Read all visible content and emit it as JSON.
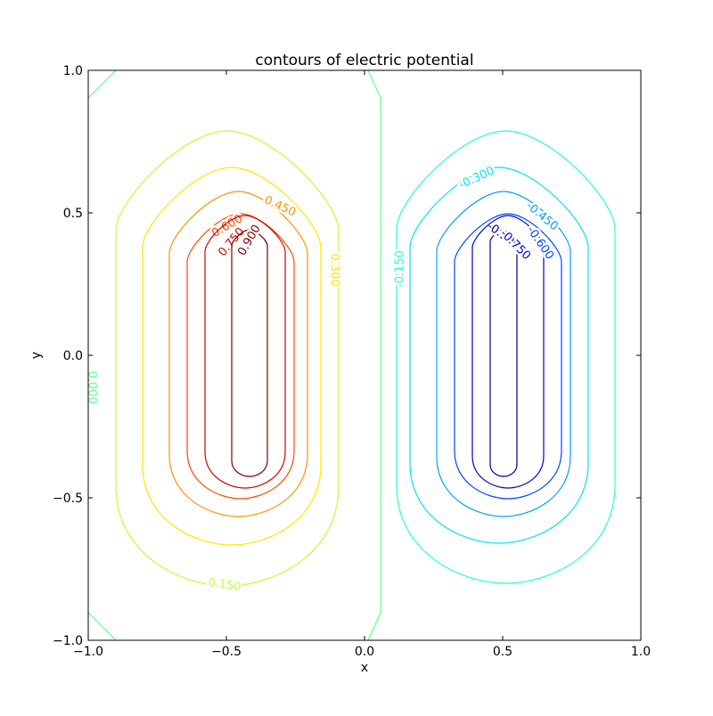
{
  "chart_data": {
    "type": "contour",
    "title": "contours of electric potential",
    "xlabel": "x",
    "ylabel": "y",
    "xlim": [
      -1,
      1
    ],
    "ylim": [
      -1,
      1
    ],
    "xticks": [
      {
        "value": -1,
        "label": "−1.0"
      },
      {
        "value": -0.5,
        "label": "−0.5"
      },
      {
        "value": 0,
        "label": "0.0"
      },
      {
        "value": 0.5,
        "label": "0.5"
      },
      {
        "value": 1,
        "label": "1.0"
      }
    ],
    "yticks": [
      {
        "value": -1,
        "label": "−1.0"
      },
      {
        "value": -0.5,
        "label": "−0.5"
      },
      {
        "value": 0,
        "label": "0.0"
      },
      {
        "value": 0.5,
        "label": "0.5"
      },
      {
        "value": 1,
        "label": "1.0"
      }
    ],
    "levels": {
      "values": [
        -0.9,
        -0.75,
        -0.6,
        -0.45,
        -0.3,
        -0.15,
        0,
        0.15,
        0.3,
        0.45,
        0.6,
        0.75,
        0.9
      ],
      "value_labels": [
        "-0.900",
        "-0.750",
        "-0.600",
        "-0.450",
        "-0.300",
        "-0.150",
        "0.000",
        "0.150",
        "0.300",
        "0.450",
        "0.600",
        "0.750",
        "0.900"
      ],
      "colors": [
        "#00007f",
        "#0000d8",
        "#0044ff",
        "#00a0ff",
        "#00e4f7",
        "#2affcd",
        "#66ff90",
        "#c1ff36",
        "#ffe500",
        "#ff9400",
        "#ff4800",
        "#d80000",
        "#7f0000"
      ]
    }
  }
}
